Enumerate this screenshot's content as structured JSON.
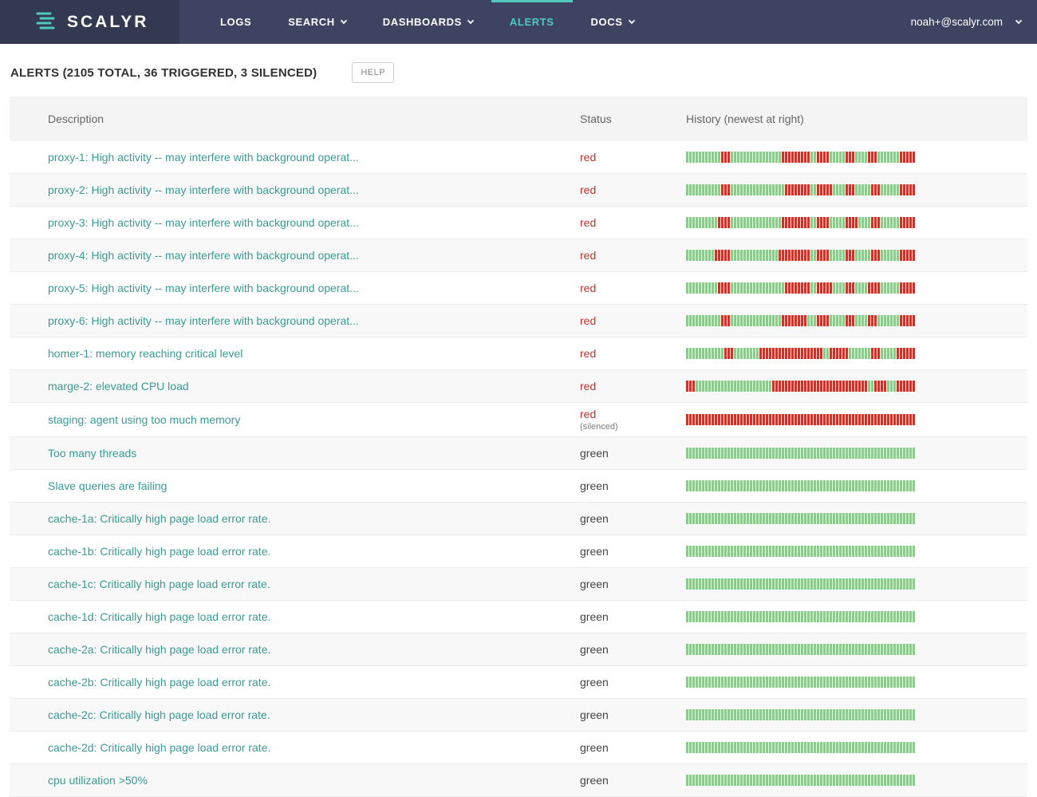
{
  "navbar": {
    "brand": "SCALYR",
    "items": [
      {
        "label": "LOGS",
        "caret": false,
        "active": false
      },
      {
        "label": "SEARCH",
        "caret": true,
        "active": false
      },
      {
        "label": "DASHBOARDS",
        "caret": true,
        "active": false
      },
      {
        "label": "ALERTS",
        "caret": false,
        "active": true
      },
      {
        "label": "DOCS",
        "caret": true,
        "active": false
      }
    ],
    "account": {
      "email": "noah+@scalyr.com"
    }
  },
  "page": {
    "title": "ALERTS (2105 TOTAL, 36 TRIGGERED, 3 SILENCED)",
    "help_label": "HELP"
  },
  "table": {
    "columns": [
      "Description",
      "Status",
      "History (newest at right)"
    ],
    "silenced_label": "(silenced)",
    "rows": [
      {
        "description": "proxy-1: High activity -- may interfere with background operat...",
        "status": "red",
        "silenced": false,
        "history": [
          [
            "g",
            11
          ],
          [
            "r",
            3
          ],
          [
            "g",
            16
          ],
          [
            "r",
            9
          ],
          [
            "g",
            2
          ],
          [
            "r",
            4
          ],
          [
            "g",
            5
          ],
          [
            "r",
            3
          ],
          [
            "g",
            4
          ],
          [
            "r",
            3
          ],
          [
            "g",
            7
          ],
          [
            "r",
            5
          ]
        ]
      },
      {
        "description": "proxy-2: High activity -- may interfere with background operat...",
        "status": "red",
        "silenced": false,
        "history": [
          [
            "g",
            11
          ],
          [
            "r",
            3
          ],
          [
            "g",
            17
          ],
          [
            "r",
            8
          ],
          [
            "g",
            2
          ],
          [
            "r",
            5
          ],
          [
            "g",
            4
          ],
          [
            "r",
            3
          ],
          [
            "g",
            5
          ],
          [
            "r",
            3
          ],
          [
            "g",
            6
          ],
          [
            "r",
            5
          ]
        ]
      },
      {
        "description": "proxy-3: High activity -- may interfere with background operat...",
        "status": "red",
        "silenced": false,
        "history": [
          [
            "g",
            10
          ],
          [
            "r",
            4
          ],
          [
            "g",
            16
          ],
          [
            "r",
            9
          ],
          [
            "g",
            2
          ],
          [
            "r",
            4
          ],
          [
            "g",
            5
          ],
          [
            "r",
            4
          ],
          [
            "g",
            4
          ],
          [
            "r",
            3
          ],
          [
            "g",
            6
          ],
          [
            "r",
            5
          ]
        ]
      },
      {
        "description": "proxy-4: High activity -- may interfere with background operat...",
        "status": "red",
        "silenced": false,
        "history": [
          [
            "g",
            9
          ],
          [
            "r",
            5
          ],
          [
            "g",
            15
          ],
          [
            "r",
            10
          ],
          [
            "g",
            2
          ],
          [
            "r",
            4
          ],
          [
            "g",
            5
          ],
          [
            "r",
            3
          ],
          [
            "g",
            5
          ],
          [
            "r",
            3
          ],
          [
            "g",
            6
          ],
          [
            "r",
            5
          ]
        ]
      },
      {
        "description": "proxy-5: High activity -- may interfere with background operat...",
        "status": "red",
        "silenced": false,
        "history": [
          [
            "g",
            10
          ],
          [
            "r",
            4
          ],
          [
            "g",
            17
          ],
          [
            "r",
            8
          ],
          [
            "g",
            2
          ],
          [
            "r",
            5
          ],
          [
            "g",
            4
          ],
          [
            "r",
            3
          ],
          [
            "g",
            4
          ],
          [
            "r",
            4
          ],
          [
            "g",
            6
          ],
          [
            "r",
            5
          ]
        ]
      },
      {
        "description": "proxy-6: High activity -- may interfere with background operat...",
        "status": "red",
        "silenced": false,
        "history": [
          [
            "g",
            11
          ],
          [
            "r",
            3
          ],
          [
            "g",
            16
          ],
          [
            "r",
            8
          ],
          [
            "g",
            3
          ],
          [
            "r",
            4
          ],
          [
            "g",
            5
          ],
          [
            "r",
            3
          ],
          [
            "g",
            4
          ],
          [
            "r",
            3
          ],
          [
            "g",
            7
          ],
          [
            "r",
            5
          ]
        ]
      },
      {
        "description": "homer-1: memory reaching critical level",
        "status": "red",
        "silenced": false,
        "history": [
          [
            "g",
            12
          ],
          [
            "r",
            3
          ],
          [
            "g",
            8
          ],
          [
            "r",
            20
          ],
          [
            "g",
            2
          ],
          [
            "r",
            6
          ],
          [
            "g",
            7
          ],
          [
            "r",
            3
          ],
          [
            "g",
            5
          ],
          [
            "r",
            6
          ]
        ]
      },
      {
        "description": "marge-2: elevated CPU load",
        "status": "red",
        "silenced": false,
        "history": [
          [
            "r",
            3
          ],
          [
            "g",
            24
          ],
          [
            "r",
            30
          ],
          [
            "g",
            2
          ],
          [
            "r",
            4
          ],
          [
            "g",
            3
          ],
          [
            "r",
            6
          ]
        ]
      },
      {
        "description": "staging: agent using too much memory",
        "status": "red",
        "silenced": true,
        "history": [
          [
            "r",
            72
          ]
        ]
      },
      {
        "description": "Too many threads",
        "status": "green",
        "silenced": false,
        "history": [
          [
            "g",
            72
          ]
        ]
      },
      {
        "description": "Slave queries are failing",
        "status": "green",
        "silenced": false,
        "history": [
          [
            "g",
            72
          ]
        ]
      },
      {
        "description": "cache-1a: Critically high page load error rate.",
        "status": "green",
        "silenced": false,
        "history": [
          [
            "g",
            72
          ]
        ]
      },
      {
        "description": "cache-1b: Critically high page load error rate.",
        "status": "green",
        "silenced": false,
        "history": [
          [
            "g",
            72
          ]
        ]
      },
      {
        "description": "cache-1c: Critically high page load error rate.",
        "status": "green",
        "silenced": false,
        "history": [
          [
            "g",
            72
          ]
        ]
      },
      {
        "description": "cache-1d: Critically high page load error rate.",
        "status": "green",
        "silenced": false,
        "history": [
          [
            "g",
            72
          ]
        ]
      },
      {
        "description": "cache-2a: Critically high page load error rate.",
        "status": "green",
        "silenced": false,
        "history": [
          [
            "g",
            72
          ]
        ]
      },
      {
        "description": "cache-2b: Critically high page load error rate.",
        "status": "green",
        "silenced": false,
        "history": [
          [
            "g",
            72
          ]
        ]
      },
      {
        "description": "cache-2c: Critically high page load error rate.",
        "status": "green",
        "silenced": false,
        "history": [
          [
            "g",
            72
          ]
        ]
      },
      {
        "description": "cache-2d: Critically high page load error rate.",
        "status": "green",
        "silenced": false,
        "history": [
          [
            "g",
            72
          ]
        ]
      },
      {
        "description": "cpu utilization >50%",
        "status": "green",
        "silenced": false,
        "history": [
          [
            "g",
            72
          ]
        ]
      }
    ]
  },
  "colors": {
    "navbar_bg": "#3d4360",
    "accent_teal": "#52c9bd",
    "link_teal": "#3a9b94",
    "status_red": "#c4312b",
    "bar_green": "#8fc98f",
    "bar_red": "#c9342c"
  }
}
